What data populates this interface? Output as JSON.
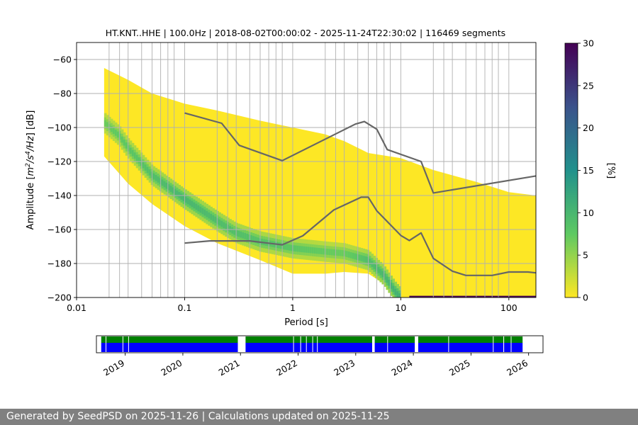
{
  "chart_data": {
    "type": "heatmap",
    "title": "HT.KNT..HHE | 100.0Hz | 2018-08-02T00:00:02 - 2025-11-24T22:30:02 | 116469 segments",
    "xlabel": "Period [s]",
    "ylabel_parts": [
      "Amplitude [",
      "m",
      "2",
      "/s",
      "4",
      "/Hz",
      "] [dB]"
    ],
    "x_scale": "log",
    "xlim": [
      0.01,
      178
    ],
    "ylim": [
      -200,
      -50
    ],
    "x_ticks": [
      {
        "value": 0.01,
        "label": "0.01"
      },
      {
        "value": 0.1,
        "label": "0.1"
      },
      {
        "value": 1,
        "label": "1"
      },
      {
        "value": 10,
        "label": "10"
      },
      {
        "value": 100,
        "label": "100"
      }
    ],
    "y_ticks": [
      {
        "value": -60,
        "label": "−60"
      },
      {
        "value": -80,
        "label": "−80"
      },
      {
        "value": -100,
        "label": "−100"
      },
      {
        "value": -120,
        "label": "−120"
      },
      {
        "value": -140,
        "label": "−140"
      },
      {
        "value": -160,
        "label": "−160"
      },
      {
        "value": -180,
        "label": "−180"
      },
      {
        "value": -200,
        "label": "−200"
      }
    ],
    "period_grid": [
      0.02,
      0.025,
      0.03,
      0.04,
      0.05,
      0.06,
      0.07,
      0.08,
      0.1,
      0.2,
      0.25,
      0.3,
      0.4,
      0.5,
      0.6,
      0.7,
      0.8,
      1,
      2,
      2.5,
      3,
      4,
      5,
      6,
      7,
      8,
      10,
      20,
      25,
      30,
      40,
      50,
      60,
      70,
      80,
      100
    ],
    "grid": true,
    "colorbar": {
      "label": "[%]",
      "range": [
        0,
        30
      ],
      "ticks": [
        {
          "value": 0,
          "label": "0"
        },
        {
          "value": 5,
          "label": "5"
        },
        {
          "value": 10,
          "label": "10"
        },
        {
          "value": 15,
          "label": "15"
        },
        {
          "value": 20,
          "label": "20"
        },
        {
          "value": 25,
          "label": "25"
        },
        {
          "value": 30,
          "label": "30"
        }
      ],
      "colormap": [
        "#440154",
        "#3b528b",
        "#21918c",
        "#5ec962",
        "#fde725"
      ]
    },
    "density": {
      "upper_edge": [
        [
          0.018,
          -65
        ],
        [
          0.03,
          -72
        ],
        [
          0.05,
          -80
        ],
        [
          0.1,
          -86
        ],
        [
          0.2,
          -90
        ],
        [
          0.5,
          -96
        ],
        [
          1,
          -100
        ],
        [
          2,
          -104
        ],
        [
          3,
          -108
        ],
        [
          5,
          -115
        ],
        [
          10,
          -118
        ],
        [
          20,
          -125
        ],
        [
          50,
          -132
        ],
        [
          100,
          -138
        ],
        [
          178,
          -140
        ]
      ],
      "lower_edge": [
        [
          0.018,
          -117
        ],
        [
          0.03,
          -133
        ],
        [
          0.05,
          -145
        ],
        [
          0.1,
          -158
        ],
        [
          0.2,
          -168
        ],
        [
          0.5,
          -178
        ],
        [
          1,
          -186
        ],
        [
          2,
          -186
        ],
        [
          3,
          -185
        ],
        [
          5,
          -186
        ],
        [
          7,
          -192
        ],
        [
          10,
          -200
        ],
        [
          178,
          -200
        ]
      ],
      "mode": [
        [
          0.018,
          -97
        ],
        [
          0.025,
          -105
        ],
        [
          0.03,
          -112
        ],
        [
          0.05,
          -128
        ],
        [
          0.1,
          -142
        ],
        [
          0.2,
          -155
        ],
        [
          0.3,
          -162
        ],
        [
          0.5,
          -167
        ],
        [
          1,
          -171
        ],
        [
          2,
          -173
        ],
        [
          3,
          -174
        ],
        [
          5,
          -178
        ],
        [
          7,
          -187
        ],
        [
          9,
          -197
        ],
        [
          10,
          -200
        ]
      ],
      "peak_percent": [
        [
          0.018,
          7
        ],
        [
          0.05,
          9
        ],
        [
          0.1,
          10
        ],
        [
          0.3,
          9
        ],
        [
          1,
          8
        ],
        [
          3,
          7
        ],
        [
          5,
          9
        ],
        [
          10,
          11
        ]
      ],
      "floor_band": {
        "x_range": [
          12,
          178
        ],
        "y_range": [
          -200,
          -199
        ],
        "percent": 30
      }
    },
    "series": [
      {
        "values": [
          [
            0.1,
            -91.5
          ],
          [
            0.22,
            -97.5
          ],
          [
            0.32,
            -110.5
          ],
          [
            0.8,
            -119.5
          ],
          [
            3.8,
            -98
          ],
          [
            4.6,
            -96.5
          ],
          [
            6,
            -101
          ],
          [
            7.5,
            -113
          ],
          [
            15.4,
            -120
          ],
          [
            20,
            -138.5
          ],
          [
            178,
            -128.5
          ]
        ]
      },
      {
        "values": [
          [
            0.1,
            -168
          ],
          [
            0.17,
            -166.7
          ],
          [
            0.4,
            -166.7
          ],
          [
            0.8,
            -169
          ],
          [
            1.24,
            -163.7
          ],
          [
            2.4,
            -148.5
          ],
          [
            4.3,
            -141
          ],
          [
            5,
            -141
          ],
          [
            6,
            -149
          ],
          [
            10,
            -163.5
          ],
          [
            12,
            -166.5
          ],
          [
            15.4,
            -162
          ],
          [
            20,
            -177
          ],
          [
            30,
            -184.5
          ],
          [
            40,
            -187
          ],
          [
            70,
            -187
          ],
          [
            100,
            -185
          ],
          [
            150,
            -185
          ],
          [
            178,
            -185.5
          ]
        ]
      }
    ],
    "availability": {
      "x_ticks": [
        "2019",
        "2020",
        "2021",
        "2022",
        "2023",
        "2024",
        "2025",
        "2026"
      ],
      "range": [
        "2018-08-02",
        "2025-11-24"
      ],
      "row_colors": [
        "#008000",
        "#0000ff"
      ],
      "gaps": [
        {
          "start": "2018-08-30",
          "end": "2018-09-03"
        },
        {
          "start": "2018-12-15",
          "end": "2018-12-18"
        },
        {
          "start": "2019-01-20",
          "end": "2019-01-23"
        },
        {
          "start": "2020-12-15",
          "end": "2021-02-02"
        },
        {
          "start": "2021-12-01",
          "end": "2021-12-03"
        },
        {
          "start": "2022-01-15",
          "end": "2022-01-20"
        },
        {
          "start": "2022-02-20",
          "end": "2022-02-24"
        },
        {
          "start": "2022-04-01",
          "end": "2022-04-03"
        },
        {
          "start": "2022-05-01",
          "end": "2022-05-05"
        },
        {
          "start": "2023-04-15",
          "end": "2023-05-01"
        },
        {
          "start": "2023-07-20",
          "end": "2023-07-24"
        },
        {
          "start": "2024-01-10",
          "end": "2024-02-01"
        },
        {
          "start": "2024-08-10",
          "end": "2024-08-13"
        },
        {
          "start": "2025-05-20",
          "end": "2025-05-24"
        },
        {
          "start": "2025-07-25",
          "end": "2025-07-30"
        },
        {
          "start": "2025-09-10",
          "end": "2025-09-13"
        }
      ]
    }
  },
  "footer": {
    "text": "Generated by SeedPSD on 2025-11-26 | Calculations updated on 2025-11-25"
  }
}
